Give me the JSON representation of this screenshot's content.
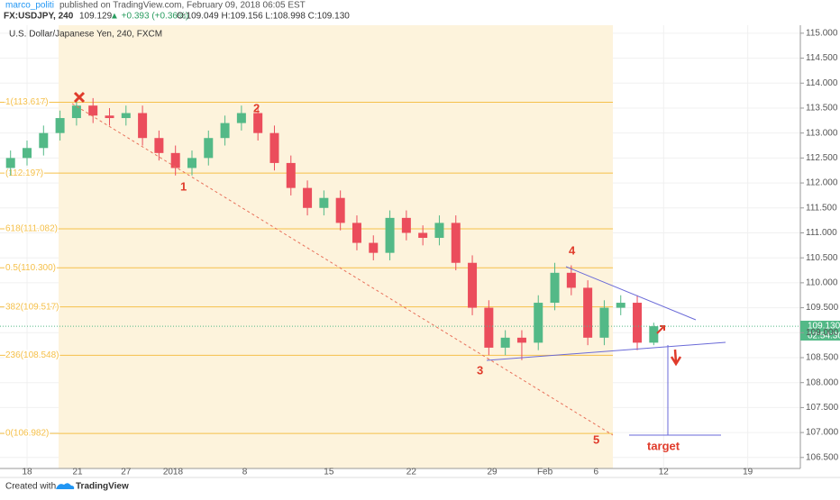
{
  "header": {
    "author": "marco_politi",
    "published": "published on TradingView.com, February 09, 2018 06:05 EST",
    "symbol": "FX:USDJPY, 240",
    "last": "109.129",
    "change": "▲ +0.393 (+0.36%)",
    "ohlc": "O:109.049 H:109.156 L:108.998 C:109.130"
  },
  "footer": {
    "created": "Created with",
    "brand": "TradingView"
  },
  "chart_data": {
    "type": "candlestick",
    "title": "U.S. Dollar/Japanese Yen, 240, FXCM",
    "x": [
      -1,
      0,
      1,
      2,
      3,
      4,
      5,
      6,
      7,
      8,
      9,
      10,
      11,
      12,
      13,
      14,
      15,
      16,
      17,
      18,
      19,
      20,
      21,
      22,
      23,
      24,
      25,
      26,
      27,
      28,
      29,
      30,
      31,
      32,
      33,
      34,
      35,
      36,
      37,
      38
    ],
    "open": [
      112.3,
      112.5,
      112.7,
      113.0,
      113.3,
      113.55,
      113.35,
      113.3,
      113.4,
      112.9,
      112.6,
      112.3,
      112.5,
      112.9,
      113.2,
      113.4,
      113.0,
      112.4,
      111.9,
      111.5,
      111.7,
      111.2,
      110.8,
      110.6,
      111.3,
      111.0,
      110.9,
      111.2,
      110.4,
      109.5,
      108.7,
      108.9,
      108.8,
      109.6,
      110.2,
      109.9,
      108.9,
      109.5,
      109.6,
      108.8
    ],
    "high": [
      112.65,
      112.85,
      113.15,
      113.45,
      113.7,
      113.7,
      113.5,
      113.55,
      113.55,
      113.05,
      112.75,
      112.65,
      113.05,
      113.35,
      113.55,
      113.55,
      113.15,
      112.55,
      112.05,
      111.85,
      111.85,
      111.35,
      110.95,
      111.45,
      111.45,
      111.15,
      111.35,
      111.35,
      110.55,
      109.65,
      109.05,
      109.05,
      109.75,
      110.4,
      110.35,
      110.05,
      109.65,
      109.75,
      109.75,
      109.2
    ],
    "low": [
      112.15,
      112.35,
      112.55,
      112.85,
      113.15,
      113.2,
      113.15,
      113.15,
      112.75,
      112.45,
      112.15,
      112.15,
      112.35,
      112.75,
      113.05,
      112.85,
      112.25,
      111.75,
      111.35,
      111.35,
      111.05,
      110.65,
      110.45,
      110.45,
      110.85,
      110.75,
      110.75,
      110.25,
      109.35,
      108.55,
      108.55,
      108.45,
      108.65,
      109.45,
      109.75,
      108.75,
      108.75,
      109.35,
      108.65,
      108.75
    ],
    "close": [
      112.5,
      112.7,
      113.0,
      113.3,
      113.55,
      113.35,
      113.3,
      113.4,
      112.9,
      112.6,
      112.3,
      112.5,
      112.9,
      113.2,
      113.4,
      113.0,
      112.4,
      111.9,
      111.5,
      111.7,
      111.2,
      110.8,
      110.6,
      111.3,
      111.0,
      110.9,
      111.2,
      110.4,
      109.5,
      108.7,
      108.9,
      108.8,
      109.6,
      110.2,
      109.9,
      108.9,
      109.5,
      109.6,
      108.8,
      109.13
    ],
    "up_color": "#53b987",
    "down_color": "#eb4d5c",
    "xlim": [
      -1.64,
      46.89
    ],
    "xticks": [
      {
        "value": 0,
        "label": "18"
      },
      {
        "value": 3.06,
        "label": "21"
      },
      {
        "value": 6,
        "label": "27"
      },
      {
        "value": 8.85,
        "label": "2018"
      },
      {
        "value": 13.2,
        "label": "8"
      },
      {
        "value": 18.3,
        "label": "15"
      },
      {
        "value": 23.3,
        "label": "22"
      },
      {
        "value": 28.2,
        "label": "29"
      },
      {
        "value": 31.4,
        "label": "Feb"
      },
      {
        "value": 34.5,
        "label": "6"
      },
      {
        "value": 38.6,
        "label": "12"
      },
      {
        "value": 43.7,
        "label": "19"
      }
    ],
    "ylim": [
      106.28,
      115.16
    ],
    "yticks": [
      {
        "value": 106.5,
        "label": "106.500"
      },
      {
        "value": 107,
        "label": "107.000"
      },
      {
        "value": 107.5,
        "label": "107.500"
      },
      {
        "value": 108,
        "label": "108.000"
      },
      {
        "value": 108.5,
        "label": "108.500"
      },
      {
        "value": 109,
        "label": "109.000"
      },
      {
        "value": 109.5,
        "label": "109.500"
      },
      {
        "value": 110,
        "label": "110.000"
      },
      {
        "value": 110.5,
        "label": "110.500"
      },
      {
        "value": 111,
        "label": "111.000"
      },
      {
        "value": 111.5,
        "label": "111.500"
      },
      {
        "value": 112,
        "label": "112.000"
      },
      {
        "value": 112.5,
        "label": "112.500"
      },
      {
        "value": 113,
        "label": "113.000"
      },
      {
        "value": 113.5,
        "label": "113.500"
      },
      {
        "value": 114,
        "label": "114.000"
      },
      {
        "value": 114.5,
        "label": "114.500"
      },
      {
        "value": 115,
        "label": "115.000"
      }
    ],
    "fib_levels": [
      {
        "value": 113.617,
        "label": "1(113.617)"
      },
      {
        "value": 112.197,
        "label": "(112.197)"
      },
      {
        "value": 111.082,
        "label": "618(111.082)"
      },
      {
        "value": 110.3,
        "label": "0.5(110.300)"
      },
      {
        "value": 109.517,
        "label": "382(109.517)"
      },
      {
        "value": 108.548,
        "label": "236(108.548)"
      },
      {
        "value": 106.982,
        "label": "0(106.982)"
      }
    ],
    "fib_color": "#f5c04a",
    "last_price": {
      "value": 109.13,
      "label": "109.130"
    },
    "countdown": "02:54:30",
    "annotations": [
      "1",
      "2",
      "3",
      "4",
      "5",
      "target"
    ]
  }
}
